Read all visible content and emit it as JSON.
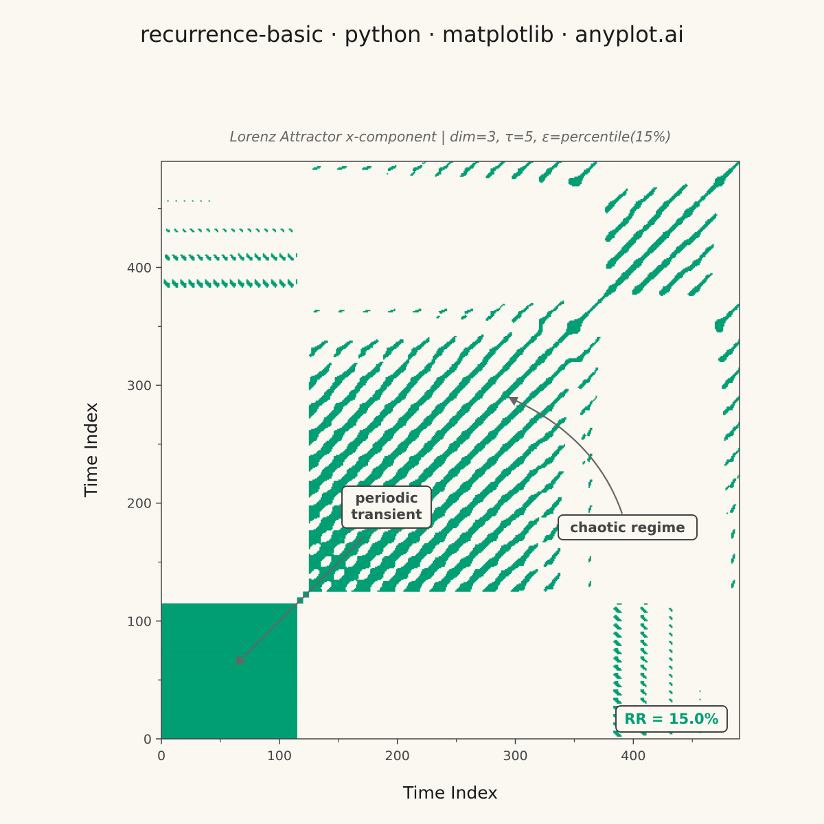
{
  "chart_data": {
    "type": "heatmap",
    "title": "recurrence-basic · python · matplotlib · anyplot.ai",
    "subtitle": "Lorenz Attractor x-component  |  dim=3, τ=5, ε=percentile(15%)",
    "xlabel": "Time Index",
    "ylabel": "Time Index",
    "xlim": [
      0,
      490
    ],
    "ylim": [
      0,
      490
    ],
    "xticks": [
      0,
      100,
      200,
      300,
      400
    ],
    "yticks": [
      0,
      100,
      200,
      300,
      400
    ],
    "xtick_labels": [
      "0",
      "100",
      "200",
      "300",
      "400"
    ],
    "ytick_labels": [
      "0",
      "100",
      "200",
      "300",
      "400"
    ],
    "n_points": 490,
    "color": "#009E73",
    "recurrence_rate": "RR = 15.0%",
    "annotations": [
      {
        "lines": [
          "periodic",
          "transient"
        ],
        "target": [
          63,
          63
        ]
      },
      {
        "lines": [
          "chaotic regime"
        ],
        "target": [
          293,
          290
        ]
      }
    ]
  }
}
